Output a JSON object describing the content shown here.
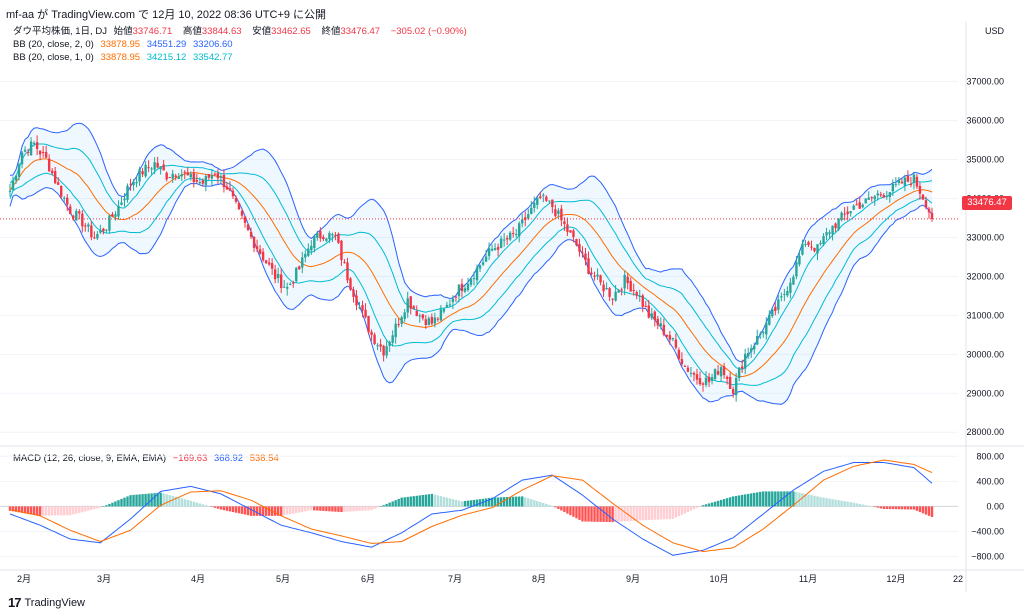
{
  "header": {
    "text": "mf-aa が TradingView.com で 12月 10, 2022 08:36 UTC+9 に公開"
  },
  "legend": {
    "main": {
      "title": "ダウ平均株価, 1日, DJ",
      "o_label": "始値",
      "o_val": "33746.71",
      "h_label": "高値",
      "h_val": "33844.63",
      "l_label": "安値",
      "l_val": "33462.65",
      "c_label": "終値",
      "c_val": "33476.47",
      "chg": "−305.02 (−0.90%)"
    },
    "bb1": {
      "title": "BB (20, close, 2, 0)",
      "basis": "33878.95",
      "upper": "34551.29",
      "lower": "33206.60"
    },
    "bb2": {
      "title": "BB (20, close, 1, 0)",
      "basis": "33878.95",
      "upper": "34215.12",
      "lower": "33542.77"
    },
    "macd": {
      "title": "MACD (12, 26, close, 9, EMA, EMA)",
      "hist": "−169.63",
      "macd": "368.92",
      "signal": "538.54"
    }
  },
  "price_axis": {
    "unit": "USD",
    "ticks": [
      "37000.00",
      "36000.00",
      "35000.00",
      "34000.00",
      "33000.00",
      "32000.00",
      "31000.00",
      "30000.00",
      "29000.00",
      "28000.00"
    ],
    "last_price": "33476.47"
  },
  "macd_axis": {
    "ticks": [
      "800.00",
      "400.00",
      "0.00",
      "−400.00",
      "−800.00"
    ]
  },
  "time_axis": {
    "ticks": [
      "2月",
      "3月",
      "4月",
      "5月",
      "6月",
      "7月",
      "8月",
      "9月",
      "10月",
      "11月",
      "12月",
      "22"
    ]
  },
  "footer": {
    "logo": "17",
    "brand": "TradingView"
  },
  "colors": {
    "up": "#26a69a",
    "down": "#f23645",
    "bb_outer": "#2962ff",
    "bb_inner": "#00bcd4",
    "basis": "#ff6d00",
    "macd_line": "#2962ff",
    "signal_line": "#ff6d00"
  },
  "chart_data": {
    "type": "candlestick",
    "title": "ダウ平均株価, 1日, DJ",
    "ylim": [
      27800,
      37300
    ],
    "x_months": [
      "2月",
      "3月",
      "4月",
      "5月",
      "6月",
      "7月",
      "8月",
      "9月",
      "10月",
      "11月",
      "12月"
    ],
    "close_path": [
      [
        0,
        34200
      ],
      [
        4,
        35200
      ],
      [
        8,
        35400
      ],
      [
        12,
        35000
      ],
      [
        16,
        34300
      ],
      [
        20,
        33700
      ],
      [
        24,
        33400
      ],
      [
        28,
        33000
      ],
      [
        32,
        33300
      ],
      [
        36,
        33800
      ],
      [
        40,
        34400
      ],
      [
        44,
        34700
      ],
      [
        48,
        34900
      ],
      [
        52,
        34600
      ],
      [
        56,
        34700
      ],
      [
        60,
        34500
      ],
      [
        64,
        34400
      ],
      [
        68,
        34700
      ],
      [
        72,
        34300
      ],
      [
        76,
        33600
      ],
      [
        80,
        33000
      ],
      [
        84,
        32500
      ],
      [
        88,
        32000
      ],
      [
        92,
        31700
      ],
      [
        96,
        32200
      ],
      [
        100,
        32900
      ],
      [
        104,
        33100
      ],
      [
        108,
        33000
      ],
      [
        112,
        32000
      ],
      [
        116,
        31200
      ],
      [
        120,
        30500
      ],
      [
        124,
        30100
      ],
      [
        128,
        30700
      ],
      [
        132,
        31400
      ],
      [
        136,
        31000
      ],
      [
        140,
        30800
      ],
      [
        144,
        31100
      ],
      [
        148,
        31600
      ],
      [
        152,
        31900
      ],
      [
        156,
        32300
      ],
      [
        160,
        32700
      ],
      [
        164,
        32900
      ],
      [
        168,
        33100
      ],
      [
        172,
        33600
      ],
      [
        176,
        34000
      ],
      [
        180,
        33800
      ],
      [
        184,
        33300
      ],
      [
        188,
        32800
      ],
      [
        192,
        32200
      ],
      [
        196,
        31800
      ],
      [
        200,
        31500
      ],
      [
        204,
        31900
      ],
      [
        208,
        31600
      ],
      [
        212,
        31000
      ],
      [
        216,
        30700
      ],
      [
        220,
        30300
      ],
      [
        224,
        29700
      ],
      [
        228,
        29400
      ],
      [
        232,
        29300
      ],
      [
        236,
        29700
      ],
      [
        240,
        29100
      ],
      [
        244,
        30000
      ],
      [
        248,
        30400
      ],
      [
        252,
        30900
      ],
      [
        256,
        31400
      ],
      [
        260,
        32100
      ],
      [
        264,
        32900
      ],
      [
        268,
        32700
      ],
      [
        272,
        33200
      ],
      [
        276,
        33500
      ],
      [
        280,
        33800
      ],
      [
        284,
        33900
      ],
      [
        288,
        34100
      ],
      [
        292,
        34200
      ],
      [
        296,
        34400
      ],
      [
        300,
        34500
      ],
      [
        304,
        33900
      ],
      [
        306,
        33476
      ]
    ],
    "macd_path": [
      [
        0,
        -120
      ],
      [
        10,
        -300
      ],
      [
        20,
        -520
      ],
      [
        30,
        -580
      ],
      [
        40,
        -200
      ],
      [
        50,
        240
      ],
      [
        60,
        320
      ],
      [
        70,
        200
      ],
      [
        80,
        -50
      ],
      [
        90,
        -300
      ],
      [
        100,
        -420
      ],
      [
        110,
        -560
      ],
      [
        120,
        -650
      ],
      [
        130,
        -420
      ],
      [
        140,
        -120
      ],
      [
        150,
        -60
      ],
      [
        160,
        120
      ],
      [
        170,
        420
      ],
      [
        180,
        500
      ],
      [
        190,
        180
      ],
      [
        200,
        -200
      ],
      [
        210,
        -520
      ],
      [
        220,
        -780
      ],
      [
        230,
        -700
      ],
      [
        240,
        -500
      ],
      [
        250,
        -120
      ],
      [
        260,
        260
      ],
      [
        270,
        560
      ],
      [
        280,
        700
      ],
      [
        290,
        700
      ],
      [
        300,
        620
      ],
      [
        306,
        369
      ]
    ],
    "signal_path": [
      [
        0,
        -50
      ],
      [
        10,
        -150
      ],
      [
        20,
        -380
      ],
      [
        30,
        -560
      ],
      [
        40,
        -380
      ],
      [
        50,
        20
      ],
      [
        60,
        230
      ],
      [
        70,
        250
      ],
      [
        80,
        100
      ],
      [
        90,
        -150
      ],
      [
        100,
        -360
      ],
      [
        110,
        -470
      ],
      [
        120,
        -590
      ],
      [
        130,
        -560
      ],
      [
        140,
        -320
      ],
      [
        150,
        -140
      ],
      [
        160,
        -20
      ],
      [
        170,
        260
      ],
      [
        180,
        490
      ],
      [
        190,
        420
      ],
      [
        200,
        50
      ],
      [
        210,
        -300
      ],
      [
        220,
        -580
      ],
      [
        230,
        -720
      ],
      [
        240,
        -660
      ],
      [
        250,
        -360
      ],
      [
        260,
        20
      ],
      [
        270,
        420
      ],
      [
        280,
        640
      ],
      [
        290,
        740
      ],
      [
        300,
        670
      ],
      [
        306,
        539
      ]
    ]
  }
}
